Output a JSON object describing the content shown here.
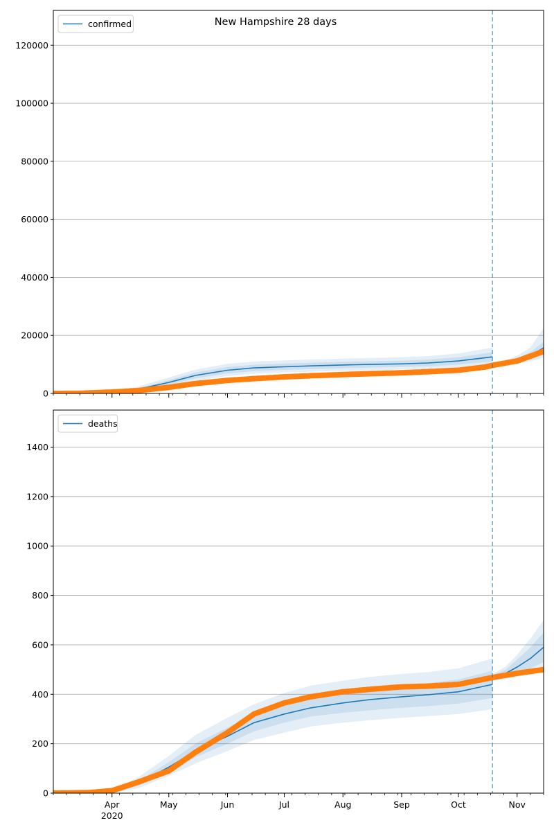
{
  "figure": {
    "title": "New Hampshire 28 days"
  },
  "colors": {
    "model": "#1f77b4",
    "observed": "#ff7f0e",
    "band": "#1f77b4",
    "grid": "#b0b0b0",
    "axis": "#000000"
  },
  "chart_data": [
    {
      "type": "line",
      "title": "New Hampshire 28 days",
      "legend": {
        "label": "confirmed",
        "placement": "top-left"
      },
      "x_axis": {
        "type": "date",
        "range": [
          "2020-03-01",
          "2020-11-15"
        ],
        "tick_labels": [
          "Apr",
          "May",
          "Jun",
          "Jul",
          "Aug",
          "Sep",
          "Oct",
          "Nov"
        ],
        "tick_dates": [
          "2020-04-01",
          "2020-05-01",
          "2020-06-01",
          "2020-07-01",
          "2020-08-01",
          "2020-09-01",
          "2020-10-01",
          "2020-11-01"
        ],
        "year_label": "2020",
        "tick_labels_visible": false
      },
      "y_axis": {
        "range": [
          0,
          132000
        ],
        "ticks": [
          0,
          20000,
          40000,
          60000,
          80000,
          100000,
          120000
        ],
        "tick_labels": [
          "0",
          "20000",
          "40000",
          "60000",
          "80000",
          "100000",
          "120000"
        ]
      },
      "grid": "y",
      "forecast_start": "2020-10-19",
      "fit_series": {
        "name": "confirmed",
        "x": [
          "2020-03-01",
          "2020-03-15",
          "2020-04-01",
          "2020-04-15",
          "2020-05-01",
          "2020-05-15",
          "2020-06-01",
          "2020-06-15",
          "2020-07-01",
          "2020-07-15",
          "2020-08-01",
          "2020-08-15",
          "2020-09-01",
          "2020-09-15",
          "2020-10-01",
          "2020-10-19"
        ],
        "y": [
          0,
          50,
          400,
          1500,
          3800,
          6200,
          8000,
          8800,
          9200,
          9500,
          9800,
          10000,
          10200,
          10500,
          11200,
          12600
        ],
        "bands": [
          {
            "lower": [
              0,
              30,
              300,
              1100,
              3000,
              5200,
              6900,
              7700,
              8100,
              8400,
              8700,
              8900,
              9100,
              9300,
              9900,
              11000
            ],
            "upper": [
              0,
              70,
              500,
              1900,
              4600,
              7200,
              9100,
              9900,
              10300,
              10600,
              10900,
              11100,
              11300,
              11700,
              12500,
              14200
            ]
          },
          {
            "lower": [
              0,
              20,
              220,
              800,
              2400,
              4400,
              6000,
              6800,
              7200,
              7500,
              7800,
              8000,
              8200,
              8400,
              8900,
              9800
            ],
            "upper": [
              0,
              90,
              620,
              2400,
              5500,
              8200,
              10200,
              11000,
              11400,
              11700,
              12000,
              12200,
              12500,
              12900,
              13800,
              15800
            ]
          }
        ]
      },
      "forecast_series": {
        "x": [
          "2020-10-19",
          "2020-10-26",
          "2020-11-01",
          "2020-11-08",
          "2020-11-15"
        ],
        "y": [
          9800,
          10400,
          11400,
          13000,
          15700
        ],
        "bands": [
          {
            "lower": [
              9600,
              10000,
              10800,
              12000,
              14000
            ],
            "upper": [
              10000,
              10900,
              12100,
              14200,
              17800
            ]
          },
          {
            "lower": [
              9400,
              9700,
              10200,
              11000,
              12400
            ],
            "upper": [
              10200,
              11400,
              13000,
              15800,
              22500
            ]
          }
        ]
      },
      "observed_series": {
        "x": [
          "2020-03-01",
          "2020-03-15",
          "2020-04-01",
          "2020-04-15",
          "2020-05-01",
          "2020-05-15",
          "2020-06-01",
          "2020-06-15",
          "2020-07-01",
          "2020-07-15",
          "2020-08-01",
          "2020-08-15",
          "2020-09-01",
          "2020-09-15",
          "2020-10-01",
          "2020-10-15",
          "2020-10-19",
          "2020-11-01",
          "2020-11-15"
        ],
        "y": [
          0,
          30,
          480,
          1000,
          2100,
          3400,
          4500,
          5100,
          5700,
          6100,
          6500,
          6800,
          7100,
          7500,
          8000,
          9100,
          9700,
          11200,
          14500
        ]
      }
    },
    {
      "type": "line",
      "legend": {
        "label": "deaths",
        "placement": "top-left"
      },
      "x_axis": {
        "type": "date",
        "range": [
          "2020-03-01",
          "2020-11-15"
        ],
        "tick_labels": [
          "Apr",
          "May",
          "Jun",
          "Jul",
          "Aug",
          "Sep",
          "Oct",
          "Nov"
        ],
        "tick_dates": [
          "2020-04-01",
          "2020-05-01",
          "2020-06-01",
          "2020-07-01",
          "2020-08-01",
          "2020-09-01",
          "2020-10-01",
          "2020-11-01"
        ],
        "year_label": "2020",
        "tick_labels_visible": true
      },
      "y_axis": {
        "range": [
          0,
          1550
        ],
        "ticks": [
          0,
          200,
          400,
          600,
          800,
          1000,
          1200,
          1400
        ],
        "tick_labels": [
          "0",
          "200",
          "400",
          "600",
          "800",
          "1000",
          "1200",
          "1400"
        ]
      },
      "grid": "y",
      "forecast_start": "2020-10-19",
      "fit_series": {
        "name": "deaths",
        "x": [
          "2020-03-01",
          "2020-03-15",
          "2020-04-01",
          "2020-04-15",
          "2020-05-01",
          "2020-05-15",
          "2020-06-01",
          "2020-06-15",
          "2020-07-01",
          "2020-07-15",
          "2020-08-01",
          "2020-08-15",
          "2020-09-01",
          "2020-09-15",
          "2020-10-01",
          "2020-10-19"
        ],
        "y": [
          0,
          0,
          5,
          40,
          105,
          170,
          230,
          285,
          320,
          345,
          365,
          378,
          390,
          398,
          410,
          440
        ],
        "bands": [
          {
            "lower": [
              0,
              0,
              3,
              30,
              85,
              145,
              200,
              250,
              285,
              310,
              325,
              335,
              345,
              352,
              362,
              385
            ],
            "upper": [
              0,
              0,
              8,
              50,
              125,
              200,
              265,
              320,
              360,
              390,
              410,
              425,
              435,
              445,
              460,
              495
            ]
          },
          {
            "lower": [
              0,
              0,
              1,
              20,
              70,
              120,
              170,
              215,
              245,
              270,
              285,
              295,
              305,
              312,
              320,
              340
            ],
            "upper": [
              0,
              0,
              12,
              65,
              150,
              235,
              305,
              360,
              405,
              435,
              455,
              470,
              482,
              490,
              505,
              545
            ]
          }
        ]
      },
      "forecast_series": {
        "x": [
          "2020-10-19",
          "2020-10-26",
          "2020-11-01",
          "2020-11-08",
          "2020-11-15"
        ],
        "y": [
          468,
          485,
          510,
          545,
          590
        ],
        "bands": [
          {
            "lower": [
              460,
              470,
              485,
              505,
              530
            ],
            "upper": [
              476,
              500,
              540,
              590,
              650
            ]
          },
          {
            "lower": [
              455,
              462,
              470,
              480,
              495
            ],
            "upper": [
              482,
              512,
              560,
              625,
              700
            ]
          }
        ]
      },
      "observed_series": {
        "x": [
          "2020-03-01",
          "2020-03-20",
          "2020-04-01",
          "2020-04-15",
          "2020-05-01",
          "2020-05-15",
          "2020-06-01",
          "2020-06-15",
          "2020-07-01",
          "2020-07-15",
          "2020-08-01",
          "2020-08-15",
          "2020-09-01",
          "2020-09-15",
          "2020-10-01",
          "2020-10-19",
          "2020-11-01",
          "2020-11-15"
        ],
        "y": [
          0,
          2,
          10,
          45,
          90,
          165,
          245,
          320,
          365,
          390,
          410,
          420,
          430,
          433,
          440,
          468,
          485,
          500
        ]
      }
    }
  ]
}
